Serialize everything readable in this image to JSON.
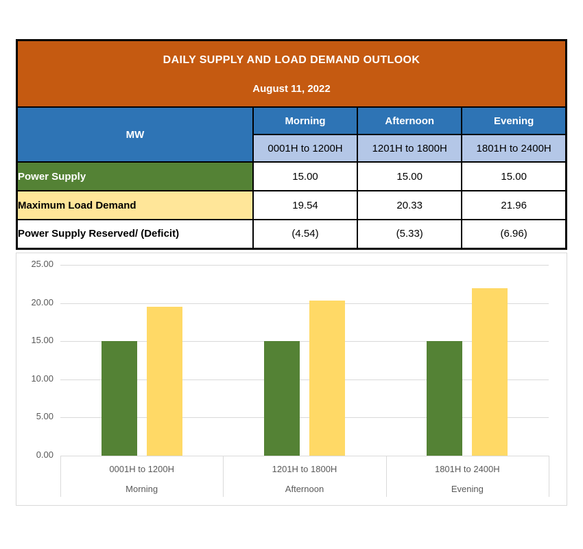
{
  "table": {
    "title": "DAILY SUPPLY AND LOAD DEMAND OUTLOOK",
    "date": "August 11, 2022",
    "unit_header": "MW",
    "periods": [
      {
        "name": "Morning",
        "hours": "0001H to 1200H"
      },
      {
        "name": "Afternoon",
        "hours": "1201H to 1800H"
      },
      {
        "name": "Evening",
        "hours": "1801H to 2400H"
      }
    ],
    "rows": [
      {
        "label": "Power Supply",
        "values": [
          "15.00",
          "15.00",
          "15.00"
        ]
      },
      {
        "label": "Maximum Load Demand",
        "values": [
          "19.54",
          "20.33",
          "21.96"
        ]
      },
      {
        "label": "Power Supply Reserved/ (Deficit)",
        "values": [
          "(4.54)",
          "(5.33)",
          "(6.96)"
        ]
      }
    ]
  },
  "colors": {
    "header_orange": "#C55A11",
    "header_blue": "#2E74B5",
    "subheader_light_blue": "#B4C7E7",
    "supply_green": "#548235",
    "demand_yellow_table": "#FFE699",
    "demand_yellow_bar": "#FFD966",
    "gridline_gray": "#D9D9D9",
    "axis_text_gray": "#595959",
    "border_black": "#000000"
  },
  "chart_data": {
    "type": "bar",
    "title": "",
    "categories": [
      "0001H to 1200H",
      "1201H to 1800H",
      "1801H to 2400H"
    ],
    "category_groups": [
      "Morning",
      "Afternoon",
      "Evening"
    ],
    "series": [
      {
        "name": "Power Supply",
        "color": "#548235",
        "values": [
          15.0,
          15.0,
          15.0
        ]
      },
      {
        "name": "Maximum Load Demand",
        "color": "#FFD966",
        "values": [
          19.54,
          20.33,
          21.96
        ]
      }
    ],
    "xlabel": "",
    "ylabel": "",
    "ylim": [
      0,
      25
    ],
    "ytick_step": 5,
    "ytick_labels": [
      "0.00",
      "5.00",
      "10.00",
      "15.00",
      "20.00",
      "25.00"
    ],
    "grid": true,
    "legend_position": "none"
  }
}
